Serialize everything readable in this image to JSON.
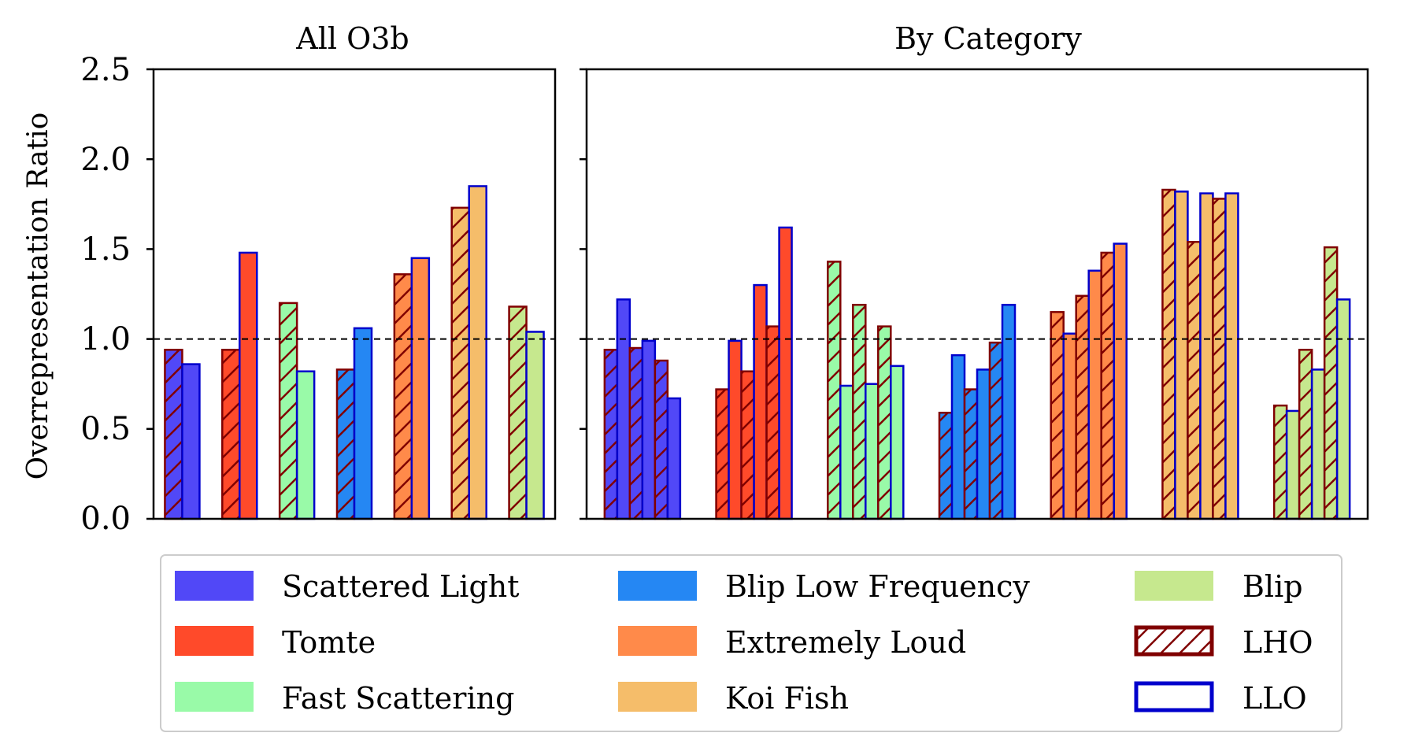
{
  "chart_data": {
    "type": "bar",
    "ylabel": "Overrepresentation Ratio",
    "ylim": [
      0,
      2.5
    ],
    "yticks": [
      "0.0",
      "0.5",
      "1.0",
      "1.5",
      "2.0",
      "2.5"
    ],
    "reference_line": 1.0,
    "colors": {
      "Scattered Light": "#5148f7",
      "Tomte": "#ff4a2a",
      "Fast Scattering": "#99faa8",
      "Blip Low Frequency": "#2587f3",
      "Extremely Loud": "#ff8a4a",
      "Koi Fish": "#f5bd6a",
      "Blip": "#c6e88e"
    },
    "edge_colors": {
      "LHO": "#800000",
      "LLO": "#0000cc"
    },
    "legend": {
      "entries": [
        "Scattered Light",
        "Tomte",
        "Fast Scattering",
        "Blip Low Frequency",
        "Extremely Loud",
        "Koi Fish",
        "Blip",
        "LHO",
        "LLO"
      ],
      "placement": "bottom-outside"
    },
    "panels": [
      {
        "title": "All O3b",
        "groups": [
          {
            "category": "Scattered Light",
            "series": [
              {
                "detector": "LHO",
                "values": [
                  0.94
                ]
              },
              {
                "detector": "LLO",
                "values": [
                  0.86
                ]
              }
            ]
          },
          {
            "category": "Tomte",
            "series": [
              {
                "detector": "LHO",
                "values": [
                  0.94
                ]
              },
              {
                "detector": "LLO",
                "values": [
                  1.48
                ]
              }
            ]
          },
          {
            "category": "Fast Scattering",
            "series": [
              {
                "detector": "LHO",
                "values": [
                  1.2
                ]
              },
              {
                "detector": "LLO",
                "values": [
                  0.82
                ]
              }
            ]
          },
          {
            "category": "Blip Low Frequency",
            "series": [
              {
                "detector": "LHO",
                "values": [
                  0.83
                ]
              },
              {
                "detector": "LLO",
                "values": [
                  1.06
                ]
              }
            ]
          },
          {
            "category": "Extremely Loud",
            "series": [
              {
                "detector": "LHO",
                "values": [
                  1.36
                ]
              },
              {
                "detector": "LLO",
                "values": [
                  1.45
                ]
              }
            ]
          },
          {
            "category": "Koi Fish",
            "series": [
              {
                "detector": "LHO",
                "values": [
                  1.73
                ]
              },
              {
                "detector": "LLO",
                "values": [
                  1.85
                ]
              }
            ]
          },
          {
            "category": "Blip",
            "series": [
              {
                "detector": "LHO",
                "values": [
                  1.18
                ]
              },
              {
                "detector": "LLO",
                "values": [
                  1.04
                ]
              }
            ]
          }
        ]
      },
      {
        "title": "By Category",
        "groups": [
          {
            "category": "Scattered Light",
            "series": [
              {
                "detector": "LHO",
                "values": [
                  0.94,
                  0.95,
                  0.88
                ]
              },
              {
                "detector": "LLO",
                "values": [
                  1.22,
                  0.99,
                  0.67
                ]
              }
            ]
          },
          {
            "category": "Tomte",
            "series": [
              {
                "detector": "LHO",
                "values": [
                  0.72,
                  0.82,
                  1.07
                ]
              },
              {
                "detector": "LLO",
                "values": [
                  0.99,
                  1.3,
                  1.62
                ]
              }
            ]
          },
          {
            "category": "Fast Scattering",
            "series": [
              {
                "detector": "LHO",
                "values": [
                  1.43,
                  1.19,
                  1.07
                ]
              },
              {
                "detector": "LLO",
                "values": [
                  0.74,
                  0.75,
                  0.85
                ]
              }
            ]
          },
          {
            "category": "Blip Low Frequency",
            "series": [
              {
                "detector": "LHO",
                "values": [
                  0.59,
                  0.72,
                  0.98
                ]
              },
              {
                "detector": "LLO",
                "values": [
                  0.91,
                  0.83,
                  1.19
                ]
              }
            ]
          },
          {
            "category": "Extremely Loud",
            "series": [
              {
                "detector": "LHO",
                "values": [
                  1.15,
                  1.24,
                  1.48
                ]
              },
              {
                "detector": "LLO",
                "values": [
                  1.03,
                  1.38,
                  1.53
                ]
              }
            ]
          },
          {
            "category": "Koi Fish",
            "series": [
              {
                "detector": "LHO",
                "values": [
                  1.83,
                  1.54,
                  1.78
                ]
              },
              {
                "detector": "LLO",
                "values": [
                  1.82,
                  1.81,
                  1.81
                ]
              }
            ]
          },
          {
            "category": "Blip",
            "series": [
              {
                "detector": "LHO",
                "values": [
                  0.63,
                  0.94,
                  1.51
                ]
              },
              {
                "detector": "LLO",
                "values": [
                  0.6,
                  0.83,
                  1.22
                ]
              }
            ]
          }
        ]
      }
    ]
  }
}
